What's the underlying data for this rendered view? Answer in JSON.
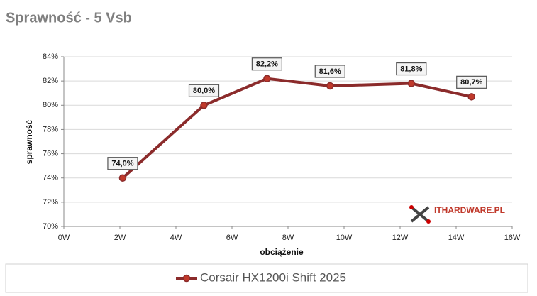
{
  "chart_data": {
    "type": "line",
    "title": "Sprawność - 5 Vsb",
    "x_label": "obciążenie",
    "y_label": "sprawność",
    "watermark": "ITHARDWARE.PL",
    "x": [
      2.1,
      5,
      7.25,
      9.5,
      12.4,
      14.55
    ],
    "series": [
      {
        "name": "Corsair HX1200i Shift 2025",
        "color": "#8b2b2b",
        "values": [
          74.0,
          80.0,
          82.2,
          81.6,
          81.8,
          80.7
        ],
        "value_labels": [
          "74,0%",
          "80,0%",
          "82,2%",
          "81,6%",
          "81,8%",
          "80,7%"
        ]
      }
    ],
    "xlim": [
      0,
      16
    ],
    "xticks": [
      {
        "value": 0,
        "label": "0W"
      },
      {
        "value": 2,
        "label": "2W"
      },
      {
        "value": 4,
        "label": "4W"
      },
      {
        "value": 6,
        "label": "6W"
      },
      {
        "value": 8,
        "label": "8W"
      },
      {
        "value": 10,
        "label": "10W"
      },
      {
        "value": 12,
        "label": "12W"
      },
      {
        "value": 14,
        "label": "14W"
      },
      {
        "value": 16,
        "label": "16W"
      }
    ],
    "ylim": [
      70,
      84
    ],
    "yticks": [
      {
        "value": 70,
        "label": "70%"
      },
      {
        "value": 72,
        "label": "72%"
      },
      {
        "value": 74,
        "label": "74%"
      },
      {
        "value": 76,
        "label": "76%"
      },
      {
        "value": 78,
        "label": "78%"
      },
      {
        "value": 80,
        "label": "80%"
      },
      {
        "value": 82,
        "label": "82%"
      },
      {
        "value": 84,
        "label": "84%"
      }
    ],
    "grid": true
  }
}
